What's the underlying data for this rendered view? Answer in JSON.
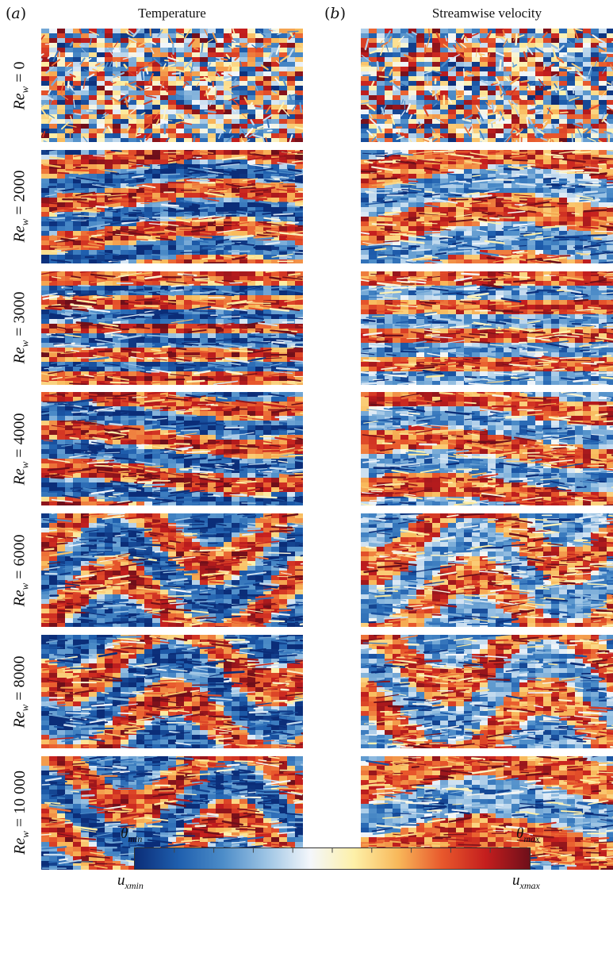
{
  "panels": [
    {
      "letter": "a",
      "title": "Temperature"
    },
    {
      "letter": "b",
      "title": "Streamwise velocity"
    }
  ],
  "rows": [
    {
      "label_prefix": "Re",
      "label_sub": "w",
      "label_value": " = 0",
      "temp_bands": 0,
      "vel_bands": 0,
      "temp_wave": 0,
      "vel_wave": 0
    },
    {
      "label_prefix": "Re",
      "label_sub": "w",
      "label_value": " = 2000",
      "temp_bands": 6,
      "vel_bands": 4,
      "temp_wave": 1,
      "vel_wave": 1
    },
    {
      "label_prefix": "Re",
      "label_sub": "w",
      "label_value": " = 3000",
      "temp_bands": 9,
      "vel_bands": 8,
      "temp_wave": 0,
      "vel_wave": 0
    },
    {
      "label_prefix": "Re",
      "label_sub": "w",
      "label_value": " = 4000",
      "temp_bands": 6,
      "vel_bands": 5,
      "temp_wave": 1,
      "vel_wave": 1
    },
    {
      "label_prefix": "Re",
      "label_sub": "w",
      "label_value": " = 6000",
      "temp_bands": 3,
      "vel_bands": 3,
      "temp_wave": 2,
      "vel_wave": 2
    },
    {
      "label_prefix": "Re",
      "label_sub": "w",
      "label_value": " = 8000",
      "temp_bands": 3,
      "vel_bands": 3,
      "temp_wave": 2,
      "vel_wave": 2
    },
    {
      "label_prefix": "Re",
      "label_sub": "w",
      "label_value": " = 10 000",
      "temp_bands": 3,
      "vel_bands": 3,
      "temp_wave": 2,
      "vel_wave": 1
    }
  ],
  "colorbar": {
    "top_left": {
      "sym": "θ",
      "sub": "min"
    },
    "top_right": {
      "sym": "θ",
      "sub": "max"
    },
    "bottom_left": {
      "sym": "u",
      "sub": "xmin"
    },
    "bottom_right": {
      "sym": "u",
      "sub": "xmax"
    },
    "colors": [
      "#0b2d78",
      "#1f5fae",
      "#4c8cc8",
      "#9dc4e4",
      "#f4f7fb",
      "#fdf0a8",
      "#f8b85a",
      "#e8582c",
      "#c41e1e",
      "#6e0f1a"
    ]
  }
}
